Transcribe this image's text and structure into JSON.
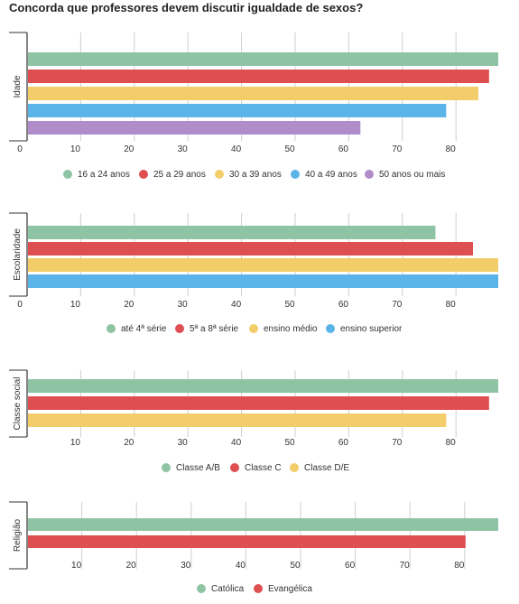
{
  "title": "Concorda que professores devem discutir igualdade de sexos?",
  "colors": [
    "#8ec4a4",
    "#de4f52",
    "#f2cd6a",
    "#5ab4e8",
    "#b08ccb"
  ],
  "chart_data": [
    {
      "type": "bar",
      "orientation": "horizontal",
      "ylabel": "Idade",
      "xlim": [
        0,
        90
      ],
      "xticks": [
        0,
        10,
        20,
        30,
        40,
        50,
        60,
        70,
        80
      ],
      "legend_position": "bottom",
      "grid": true,
      "series": [
        {
          "name": "16 a 24 anos",
          "value": 89
        },
        {
          "name": "25 a 29 anos",
          "value": 86
        },
        {
          "name": "30 a 39 anos",
          "value": 84
        },
        {
          "name": "40 a 49 anos",
          "value": 78
        },
        {
          "name": "50 anos ou mais",
          "value": 62
        }
      ]
    },
    {
      "type": "bar",
      "orientation": "horizontal",
      "ylabel": "Escolaridade",
      "xlim": [
        0,
        90
      ],
      "xticks": [
        0,
        10,
        20,
        30,
        40,
        50,
        60,
        70,
        80
      ],
      "legend_position": "bottom",
      "grid": true,
      "series": [
        {
          "name": "até 4ª série",
          "value": 76
        },
        {
          "name": "5ª a 8ª série",
          "value": 83
        },
        {
          "name": "ensino médio",
          "value": 89
        },
        {
          "name": "ensino superior",
          "value": 89
        }
      ]
    },
    {
      "type": "bar",
      "orientation": "horizontal",
      "ylabel": "Classe social",
      "xlim": [
        0,
        90
      ],
      "xticks": [
        10,
        20,
        30,
        40,
        50,
        60,
        70,
        80
      ],
      "legend_position": "bottom",
      "grid": true,
      "series": [
        {
          "name": "Classe A/B",
          "value": 89
        },
        {
          "name": "Classe C",
          "value": 86
        },
        {
          "name": "Classe D/E",
          "value": 78
        }
      ]
    },
    {
      "type": "bar",
      "orientation": "horizontal",
      "ylabel": "Religião",
      "xlim": [
        0,
        86
      ],
      "xticks": [
        10,
        20,
        30,
        40,
        50,
        60,
        70,
        80
      ],
      "legend_position": "bottom",
      "grid": true,
      "series": [
        {
          "name": "Católica",
          "value": 86
        },
        {
          "name": "Evangélica",
          "value": 80
        }
      ]
    }
  ]
}
